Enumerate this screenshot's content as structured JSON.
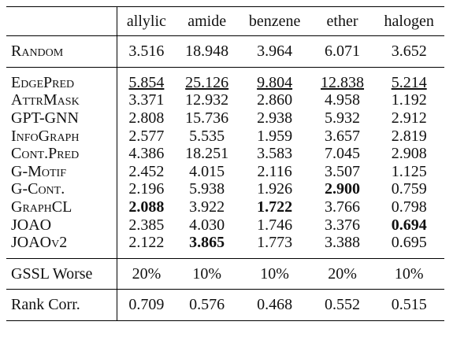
{
  "table": {
    "columns": [
      "allylic",
      "amide",
      "benzene",
      "ether",
      "halogen"
    ],
    "groups": [
      [
        {
          "method": "Random",
          "values": [
            "3.516",
            "18.948",
            "3.964",
            "6.071",
            "3.652"
          ]
        }
      ],
      [
        {
          "method": "EdgePred",
          "values": [
            "5.854",
            "25.126",
            "9.804",
            "12.838",
            "5.214"
          ]
        },
        {
          "method": "AttrMask",
          "values": [
            "3.371",
            "12.932",
            "2.860",
            "4.958",
            "1.192"
          ]
        },
        {
          "method": "GPT-GNN",
          "values": [
            "2.808",
            "15.736",
            "2.938",
            "5.932",
            "2.912"
          ]
        },
        {
          "method": "InfoGraph",
          "values": [
            "2.577",
            "5.535",
            "1.959",
            "3.657",
            "2.819"
          ]
        },
        {
          "method": "Cont.Pred",
          "values": [
            "4.386",
            "18.251",
            "3.583",
            "7.045",
            "2.908"
          ]
        },
        {
          "method": "G-Motif",
          "values": [
            "2.452",
            "4.015",
            "2.116",
            "3.507",
            "1.125"
          ]
        },
        {
          "method": "G-Cont.",
          "values": [
            "2.196",
            "5.938",
            "1.926",
            "2.900",
            "0.759"
          ]
        },
        {
          "method": "GraphCL",
          "values": [
            "2.088",
            "3.922",
            "1.722",
            "3.766",
            "0.798"
          ]
        },
        {
          "method": "JOAO",
          "values": [
            "2.385",
            "4.030",
            "1.746",
            "3.376",
            "0.694"
          ]
        },
        {
          "method": "JOAOv2",
          "values": [
            "2.122",
            "3.865",
            "1.773",
            "3.388",
            "0.695"
          ]
        }
      ],
      [
        {
          "method": "GSSL Worse",
          "values": [
            "20%",
            "10%",
            "10%",
            "20%",
            "10%"
          ]
        }
      ],
      [
        {
          "method": "Rank Corr.",
          "values": [
            "0.709",
            "0.576",
            "0.468",
            "0.552",
            "0.515"
          ]
        }
      ]
    ]
  }
}
